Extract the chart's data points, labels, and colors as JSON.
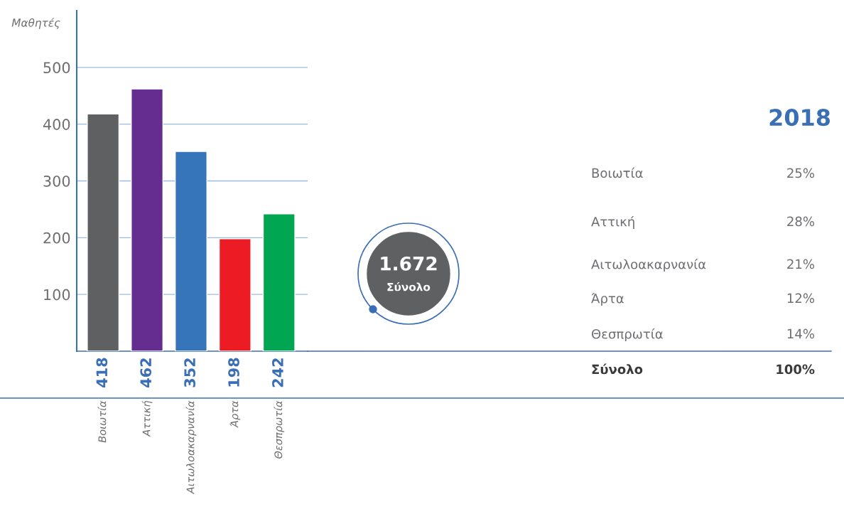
{
  "chart_data": [
    {
      "type": "bar",
      "ylabel": "Μαθητές",
      "categories": [
        "Βοιωτία",
        "Αττική",
        "Αιτωλοακαρνανία",
        "Άρτα",
        "Θεσπρωτία"
      ],
      "values": [
        418,
        462,
        352,
        198,
        242
      ],
      "colors": [
        "#5f6062",
        "#652d8f",
        "#3775bb",
        "#ed1c24",
        "#00a651"
      ],
      "ylim": [
        0,
        600
      ],
      "yticks": [
        100,
        200,
        300,
        400,
        500
      ],
      "grid": "y",
      "data_labels": true
    },
    {
      "type": "other",
      "title": "2018",
      "categories": [
        "Βοιωτία",
        "Αττική",
        "Αιτωλοακαρνανία",
        "Άρτα",
        "Θεσπρωτία",
        "Σύνολο"
      ],
      "value_labels": [
        "25%",
        "28%",
        "21%",
        "12%",
        "14%",
        "100%"
      ],
      "annotations": [
        "1.672",
        "Σύνολο"
      ]
    }
  ]
}
